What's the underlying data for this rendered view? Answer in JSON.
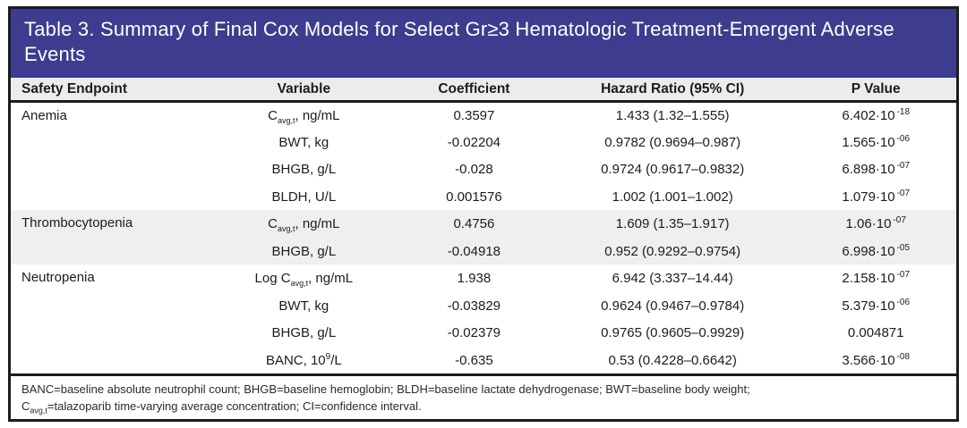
{
  "table": {
    "title": "Table 3. Summary of Final Cox Models for Select Gr≥3 Hematologic Treatment-Emergent Adverse Events",
    "columns": [
      "Safety Endpoint",
      "Variable",
      "Coefficient",
      "Hazard Ratio (95% CI)",
      "P Value"
    ],
    "sections": [
      {
        "endpoint": "Anemia",
        "shaded": false,
        "rows": [
          {
            "variable": [
              {
                "t": "C"
              },
              {
                "sub": "avg,t"
              },
              {
                "t": ", ng/mL"
              }
            ],
            "coefficient": "0.3597",
            "hazard_ratio": "1.433 (1.32–1.555)",
            "p_value": [
              {
                "t": "6.402·10"
              },
              {
                "sup": "-18"
              }
            ]
          },
          {
            "variable": [
              {
                "t": "BWT, kg"
              }
            ],
            "coefficient": "-0.02204",
            "hazard_ratio": "0.9782 (0.9694–0.987)",
            "p_value": [
              {
                "t": "1.565·10"
              },
              {
                "sup": "-06"
              }
            ]
          },
          {
            "variable": [
              {
                "t": "BHGB, g/L"
              }
            ],
            "coefficient": "-0.028",
            "hazard_ratio": "0.9724 (0.9617–0.9832)",
            "p_value": [
              {
                "t": "6.898·10"
              },
              {
                "sup": "-07"
              }
            ]
          },
          {
            "variable": [
              {
                "t": "BLDH, U/L"
              }
            ],
            "coefficient": "0.001576",
            "hazard_ratio": "1.002 (1.001–1.002)",
            "p_value": [
              {
                "t": "1.079·10"
              },
              {
                "sup": "-07"
              }
            ]
          }
        ]
      },
      {
        "endpoint": "Thrombocytopenia",
        "shaded": true,
        "rows": [
          {
            "variable": [
              {
                "t": "C"
              },
              {
                "sub": "avg,t"
              },
              {
                "t": ", ng/mL"
              }
            ],
            "coefficient": "0.4756",
            "hazard_ratio": "1.609 (1.35–1.917)",
            "p_value": [
              {
                "t": "1.06·10"
              },
              {
                "sup": "-07"
              }
            ]
          },
          {
            "variable": [
              {
                "t": "BHGB, g/L"
              }
            ],
            "coefficient": "-0.04918",
            "hazard_ratio": "0.952 (0.9292–0.9754)",
            "p_value": [
              {
                "t": "6.998·10"
              },
              {
                "sup": "-05"
              }
            ]
          }
        ]
      },
      {
        "endpoint": "Neutropenia",
        "shaded": false,
        "rows": [
          {
            "variable": [
              {
                "t": "Log C"
              },
              {
                "sub": "avg,t"
              },
              {
                "t": ", ng/mL"
              }
            ],
            "coefficient": "1.938",
            "hazard_ratio": "6.942 (3.337–14.44)",
            "p_value": [
              {
                "t": "2.158·10"
              },
              {
                "sup": "-07"
              }
            ]
          },
          {
            "variable": [
              {
                "t": "BWT, kg"
              }
            ],
            "coefficient": "-0.03829",
            "hazard_ratio": "0.9624 (0.9467–0.9784)",
            "p_value": [
              {
                "t": "5.379·10"
              },
              {
                "sup": "-06"
              }
            ]
          },
          {
            "variable": [
              {
                "t": "BHGB, g/L"
              }
            ],
            "coefficient": "-0.02379",
            "hazard_ratio": "0.9765 (0.9605–0.9929)",
            "p_value": [
              {
                "t": "0.004871"
              }
            ]
          },
          {
            "variable": [
              {
                "t": "BANC, 10"
              },
              {
                "sup": "9"
              },
              {
                "t": "/L"
              }
            ],
            "coefficient": "-0.635",
            "hazard_ratio": "0.53 (0.4228–0.6642)",
            "p_value": [
              {
                "t": "3.566·10"
              },
              {
                "sup": "-08"
              }
            ]
          }
        ]
      }
    ],
    "footnote_lines": [
      [
        {
          "t": "BANC=baseline absolute neutrophil count; BHGB=baseline hemoglobin; BLDH=baseline lactate dehydrogenase; BWT=baseline body weight;"
        }
      ],
      [
        {
          "t": "C"
        },
        {
          "sub": "avg,t"
        },
        {
          "t": "=talazoparib time-varying average concentration; CI=confidence interval."
        }
      ]
    ]
  },
  "colors": {
    "title_bg": "#3d3c8e",
    "header_bg": "#edecec",
    "band_bg": "#efefef",
    "border": "#1e1b1c",
    "text": "#1c1c1c"
  }
}
